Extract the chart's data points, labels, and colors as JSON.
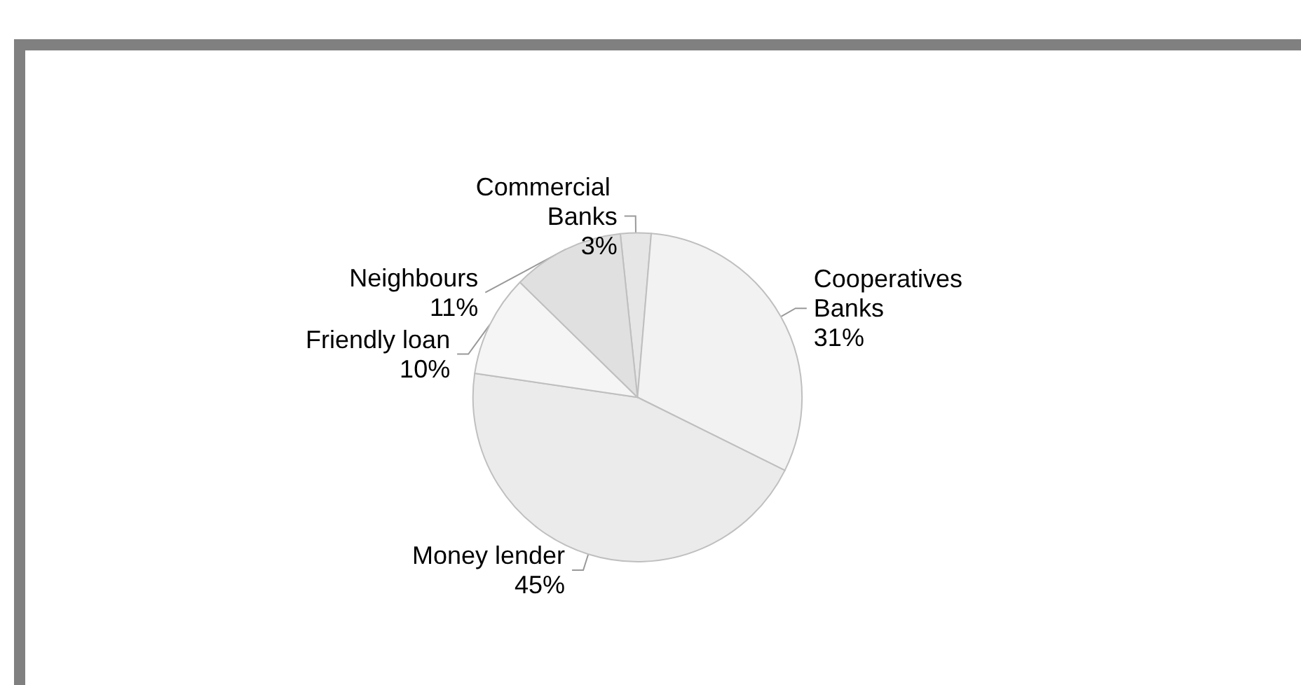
{
  "chart_data": {
    "type": "pie",
    "categories": [
      "Commercial Banks",
      "Cooperatives Banks",
      "Money lender",
      "Friendly loan",
      "Neighbours"
    ],
    "values": [
      3,
      31,
      45,
      10,
      11
    ],
    "value_labels": [
      "3%",
      "31%",
      "45%",
      "10%",
      "11%"
    ],
    "colors": [
      "#e6e6e6",
      "#f2f2f2",
      "#ebebeb",
      "#f5f5f5",
      "#e0e0e0"
    ]
  }
}
